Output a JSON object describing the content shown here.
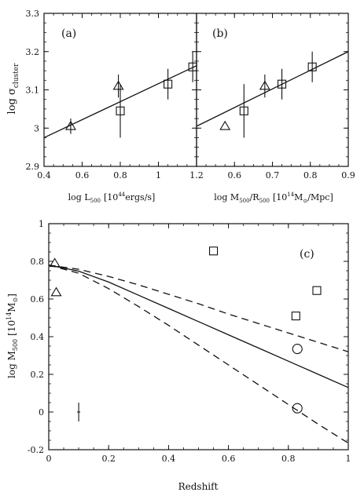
{
  "chart_data": [
    {
      "panel": "(a)",
      "type": "scatter",
      "xlabel": "log L500 [10^44 ergs/s]",
      "ylabel": "log σcluster",
      "xlim": [
        0.4,
        1.2
      ],
      "ylim": [
        2.9,
        3.3
      ],
      "xticks": [
        "0.4",
        "0.6",
        "0.8",
        "1",
        "1.2"
      ],
      "yticks": [
        "2.9",
        "3",
        "3.1",
        "3.2",
        "3.3"
      ],
      "fit_line": [
        {
          "x": 0.4,
          "y": 2.975
        },
        {
          "x": 1.25,
          "y": 3.175
        }
      ],
      "series": [
        {
          "marker": "triangle",
          "points": [
            {
              "x": 0.54,
              "y": 3.005,
              "err": 0.02
            },
            {
              "x": 0.79,
              "y": 3.11,
              "err": 0.03
            }
          ]
        },
        {
          "marker": "square",
          "points": [
            {
              "x": 0.8,
              "y": 3.045,
              "err": 0.07
            },
            {
              "x": 1.05,
              "y": 3.115,
              "err": 0.04
            },
            {
              "x": 1.18,
              "y": 3.16,
              "err": 0.04
            }
          ]
        }
      ]
    },
    {
      "panel": "(b)",
      "type": "scatter",
      "xlabel": "log M500/R500 [10^14 M⊙/Mpc]",
      "ylabel": "",
      "xlim": [
        0.5,
        0.9
      ],
      "ylim": [
        2.9,
        3.3
      ],
      "xticks": [
        "0.6",
        "0.7",
        "0.8",
        "0.9"
      ],
      "yticks": [],
      "fit_line": [
        {
          "x": 0.5,
          "y": 3.005
        },
        {
          "x": 0.9,
          "y": 3.2
        }
      ],
      "series": [
        {
          "marker": "triangle",
          "points": [
            {
              "x": 0.575,
              "y": 3.005,
              "err": 0
            },
            {
              "x": 0.68,
              "y": 3.11,
              "err": 0.03
            }
          ]
        },
        {
          "marker": "square",
          "points": [
            {
              "x": 0.625,
              "y": 3.045,
              "err": 0.07
            },
            {
              "x": 0.725,
              "y": 3.115,
              "err": 0.04
            },
            {
              "x": 0.805,
              "y": 3.16,
              "err": 0.04
            }
          ]
        }
      ]
    },
    {
      "panel": "(c)",
      "type": "scatter",
      "xlabel": "Redshift",
      "ylabel": "log M500 [10^14 M⊙]",
      "xlim": [
        0,
        1
      ],
      "ylim": [
        -0.2,
        1
      ],
      "xticks": [
        "0",
        "0.2",
        "0.4",
        "0.6",
        "0.8",
        "1"
      ],
      "yticks": [
        "-0.2",
        "0",
        "0.2",
        "0.4",
        "0.6",
        "0.8",
        "1"
      ],
      "model_curves": [
        {
          "style": "solid",
          "points": [
            {
              "x": 0,
              "y": 0.78
            },
            {
              "x": 0.1,
              "y": 0.748
            },
            {
              "x": 0.2,
              "y": 0.69
            },
            {
              "x": 0.3,
              "y": 0.62
            },
            {
              "x": 0.4,
              "y": 0.55
            },
            {
              "x": 0.5,
              "y": 0.48
            },
            {
              "x": 0.6,
              "y": 0.41
            },
            {
              "x": 0.7,
              "y": 0.34
            },
            {
              "x": 0.8,
              "y": 0.27
            },
            {
              "x": 0.9,
              "y": 0.2
            },
            {
              "x": 1.0,
              "y": 0.13
            }
          ]
        },
        {
          "style": "dashed",
          "points": [
            {
              "x": 0,
              "y": 0.78
            },
            {
              "x": 0.1,
              "y": 0.758
            },
            {
              "x": 0.2,
              "y": 0.72
            },
            {
              "x": 0.3,
              "y": 0.675
            },
            {
              "x": 0.4,
              "y": 0.625
            },
            {
              "x": 0.5,
              "y": 0.575
            },
            {
              "x": 0.6,
              "y": 0.52
            },
            {
              "x": 0.7,
              "y": 0.47
            },
            {
              "x": 0.8,
              "y": 0.42
            },
            {
              "x": 0.9,
              "y": 0.37
            },
            {
              "x": 1.0,
              "y": 0.32
            }
          ]
        },
        {
          "style": "dashed",
          "points": [
            {
              "x": 0,
              "y": 0.78
            },
            {
              "x": 0.1,
              "y": 0.737
            },
            {
              "x": 0.2,
              "y": 0.655
            },
            {
              "x": 0.3,
              "y": 0.56
            },
            {
              "x": 0.4,
              "y": 0.46
            },
            {
              "x": 0.5,
              "y": 0.355
            },
            {
              "x": 0.6,
              "y": 0.25
            },
            {
              "x": 0.7,
              "y": 0.145
            },
            {
              "x": 0.8,
              "y": 0.04
            },
            {
              "x": 0.9,
              "y": -0.065
            },
            {
              "x": 1.0,
              "y": -0.165
            }
          ]
        }
      ],
      "series": [
        {
          "marker": "triangle",
          "points": [
            {
              "x": 0.02,
              "y": 0.79
            },
            {
              "x": 0.025,
              "y": 0.635
            }
          ]
        },
        {
          "marker": "square",
          "points": [
            {
              "x": 0.55,
              "y": 0.855
            },
            {
              "x": 0.825,
              "y": 0.51
            },
            {
              "x": 0.895,
              "y": 0.645
            }
          ]
        },
        {
          "marker": "circle",
          "points": [
            {
              "x": 0.83,
              "y": 0.335
            },
            {
              "x": 0.83,
              "y": 0.02
            }
          ]
        }
      ],
      "error_bar_example": {
        "x": 0.1,
        "y": 0,
        "err": 0.05
      }
    }
  ],
  "labels": {
    "panel_a": "(a)",
    "panel_b": "(b)",
    "panel_c": "(c)",
    "a_xlabel_main": "log L",
    "a_xlabel_sub": "500",
    "a_xlabel_bracket": "[10",
    "a_xlabel_sup": "44",
    "a_xlabel_rest": "ergs/s]",
    "b_xlabel_main": "log M",
    "b_xlabel_sub1": "500",
    "b_xlabel_mid": "/R",
    "b_xlabel_sub2": "500",
    "b_xlabel_bracket": "[10",
    "b_xlabel_sup": "14",
    "b_xlabel_m": "M",
    "b_xlabel_sun": "⊙",
    "b_xlabel_rest": "/Mpc]",
    "top_ylabel_main": "log σ",
    "top_ylabel_sub": "cluster",
    "c_xlabel": "Redshift",
    "c_ylabel_main": "log M",
    "c_ylabel_sub": "500",
    "c_ylabel_bracket": "[10",
    "c_ylabel_sup": "14",
    "c_ylabel_m": "M",
    "c_ylabel_sun": "⊙",
    "c_ylabel_close": "]"
  },
  "colors": {
    "ink": "#111111",
    "background": "#ffffff"
  }
}
